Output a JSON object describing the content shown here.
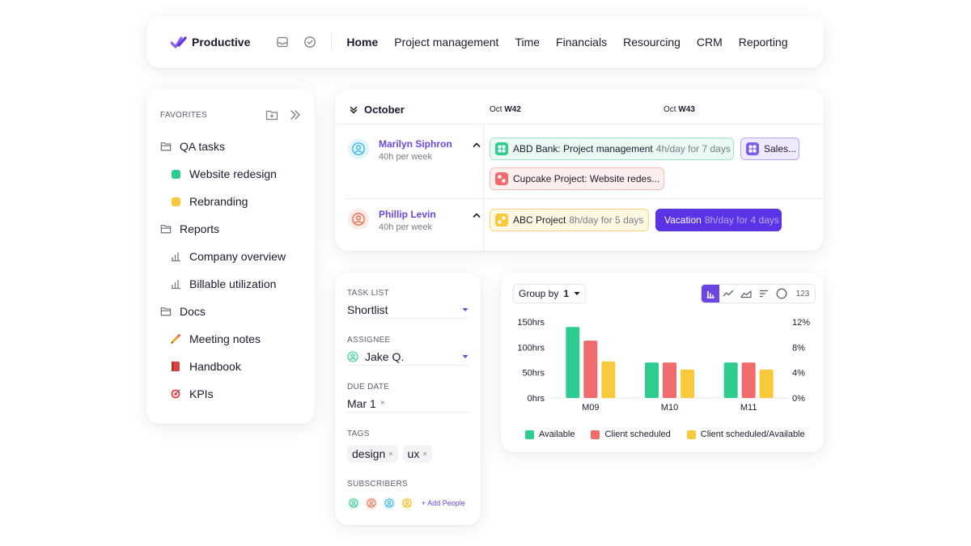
{
  "nav": {
    "brand": "Productive",
    "items": [
      "Home",
      "Project management",
      "Time",
      "Financials",
      "Resourcing",
      "CRM",
      "Reporting"
    ],
    "active": "Home"
  },
  "favorites": {
    "title": "FAVORITES",
    "items": [
      {
        "label": "QA tasks",
        "icon": "folder-icon",
        "indent": false
      },
      {
        "label": "Website redesign",
        "icon": "green-square-icon",
        "indent": true,
        "color": "#2ecc8f"
      },
      {
        "label": "Rebranding",
        "icon": "yellow-square-icon",
        "indent": true,
        "color": "#f9c93c"
      },
      {
        "label": "Reports",
        "icon": "folder-icon",
        "indent": false
      },
      {
        "label": "Company overview",
        "icon": "bar-chart-icon",
        "indent": true
      },
      {
        "label": "Billable utilization",
        "icon": "bar-chart-icon",
        "indent": true
      },
      {
        "label": "Docs",
        "icon": "folder-icon",
        "indent": false
      },
      {
        "label": "Meeting notes",
        "icon": "pencil-icon",
        "indent": true
      },
      {
        "label": "Handbook",
        "icon": "book-icon",
        "indent": true
      },
      {
        "label": "KPIs",
        "icon": "target-icon",
        "indent": true
      }
    ]
  },
  "schedule": {
    "month": "October",
    "weeks": [
      {
        "prefix": "Oct",
        "week": "W42"
      },
      {
        "prefix": "Oct",
        "week": "W43"
      }
    ],
    "people": [
      {
        "name": "Marilyn Siphron",
        "hours": "40h per week",
        "avatar_color": "#3bb3e8"
      },
      {
        "name": "Phillip Levin",
        "hours": "40h per week",
        "avatar_color": "#f06b4f"
      }
    ],
    "bookings": [
      {
        "title": "ABD Bank: Project management",
        "detail": "4h/day for 7 days",
        "color": "#2ecc8f"
      },
      {
        "title": "Sales...",
        "detail": "",
        "color": "#7b5ce8"
      },
      {
        "title": "Cupcake Project: Website redes...",
        "detail": "",
        "color": "#f06b6b"
      },
      {
        "title": "ABC Project",
        "detail": "8h/day for 5 days",
        "color": "#f9c93c"
      },
      {
        "title": "Vacation",
        "detail": "8h/day for 4 days",
        "color": "#5b33e6"
      }
    ]
  },
  "task_form": {
    "task_list_label": "TASK LIST",
    "task_list_value": "Shortlist",
    "assignee_label": "ASSIGNEE",
    "assignee_value": "Jake Q.",
    "due_date_label": "DUE DATE",
    "due_date_value": "Mar 1",
    "tags_label": "TAGS",
    "tags": [
      "design",
      "ux"
    ],
    "subscribers_label": "SUBSCRIBERS",
    "add_people": "+ Add People",
    "subscriber_colors": [
      "#2ecc8f",
      "#f06b4f",
      "#3bb3e8",
      "#f9c93c"
    ]
  },
  "chart_controls": {
    "group_by_label": "Group by",
    "group_by_value": "1",
    "number_toggle": "123"
  },
  "chart_data": {
    "type": "bar",
    "categories": [
      "M09",
      "M10",
      "M11"
    ],
    "series": [
      {
        "name": "Available",
        "values": [
          140,
          70,
          70
        ],
        "color": "#2ecc8f"
      },
      {
        "name": "Client scheduled",
        "values": [
          113,
          70,
          70
        ],
        "color": "#f06b6b"
      },
      {
        "name": "Client scheduled/Available",
        "values": [
          72,
          56,
          56
        ],
        "color": "#f9c93c"
      }
    ],
    "y_left": {
      "ticks": [
        "0hrs",
        "50hrs",
        "100hrs",
        "150hrs"
      ],
      "range": [
        0,
        150
      ]
    },
    "y_right": {
      "ticks": [
        "0%",
        "4%",
        "8%",
        "12%"
      ],
      "range": [
        0,
        12
      ]
    },
    "legend_position": "bottom",
    "grid": false
  }
}
